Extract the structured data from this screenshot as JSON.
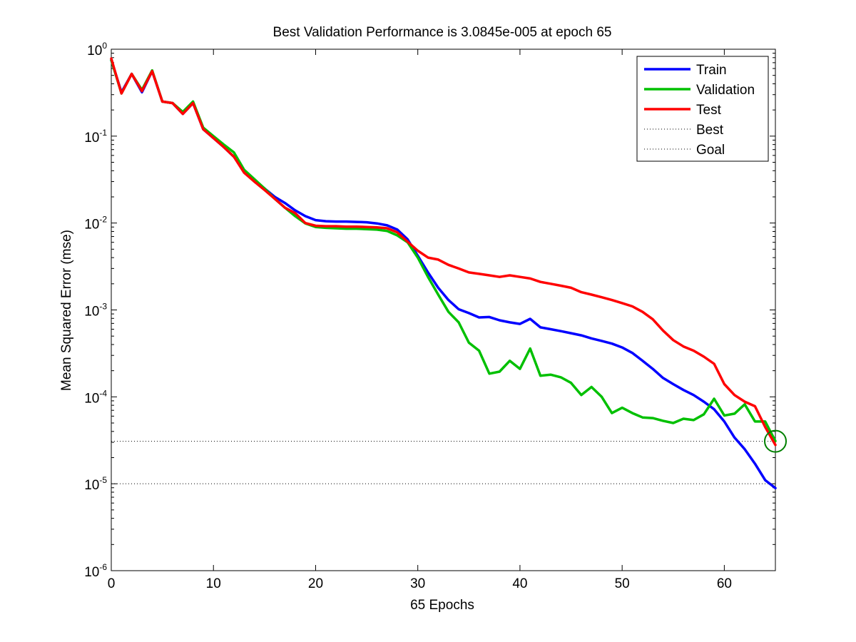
{
  "chart_data": {
    "type": "line",
    "title": "Best Validation Performance is 3.0845e-005 at epoch 65",
    "xlabel": "65 Epochs",
    "ylabel": "Mean Squared Error  (mse)",
    "xlim": [
      0,
      65
    ],
    "ylim": [
      1e-06,
      1
    ],
    "y_scale": "log",
    "x_ticks": [
      0,
      10,
      20,
      30,
      40,
      50,
      60
    ],
    "y_ticks": [
      {
        "base": "10",
        "exp": "-6",
        "value": 1e-06
      },
      {
        "base": "10",
        "exp": "-5",
        "value": 1e-05
      },
      {
        "base": "10",
        "exp": "-4",
        "value": 0.0001
      },
      {
        "base": "10",
        "exp": "-3",
        "value": 0.001
      },
      {
        "base": "10",
        "exp": "-2",
        "value": 0.01
      },
      {
        "base": "10",
        "exp": "-1",
        "value": 0.1
      },
      {
        "base": "10",
        "exp": "0",
        "value": 1
      }
    ],
    "grid": false,
    "legend_position": "top-right",
    "series": [
      {
        "name": "Train",
        "color": "#0000ff",
        "x": [
          0,
          1,
          2,
          3,
          4,
          5,
          6,
          7,
          8,
          9,
          10,
          11,
          12,
          13,
          14,
          15,
          16,
          17,
          18,
          19,
          20,
          21,
          22,
          23,
          24,
          25,
          26,
          27,
          28,
          29,
          30,
          31,
          32,
          33,
          34,
          35,
          36,
          37,
          38,
          39,
          40,
          41,
          42,
          43,
          44,
          45,
          46,
          47,
          48,
          49,
          50,
          51,
          52,
          53,
          54,
          55,
          56,
          57,
          58,
          59,
          60,
          61,
          62,
          63,
          64,
          65
        ],
        "values": [
          0.75,
          0.32,
          0.52,
          0.32,
          0.56,
          0.25,
          0.24,
          0.18,
          0.24,
          0.12,
          0.095,
          0.075,
          0.058,
          0.039,
          0.031,
          0.025,
          0.02,
          0.017,
          0.014,
          0.012,
          0.0108,
          0.0105,
          0.0104,
          0.0104,
          0.0103,
          0.0102,
          0.0099,
          0.0094,
          0.0084,
          0.0065,
          0.0042,
          0.0027,
          0.0018,
          0.0013,
          0.00102,
          0.00092,
          0.00082,
          0.00083,
          0.00076,
          0.00072,
          0.00069,
          0.00079,
          0.00063,
          0.0006,
          0.00057,
          0.00054,
          0.00051,
          0.00047,
          0.00044,
          0.00041,
          0.00037,
          0.00032,
          0.00026,
          0.00021,
          0.000165,
          0.00014,
          0.00012,
          0.000105,
          8.8e-05,
          7.2e-05,
          5.2e-05,
          3.4e-05,
          2.5e-05,
          1.7e-05,
          1.1e-05,
          8.9e-06
        ]
      },
      {
        "name": "Validation",
        "color": "#00c000",
        "x": [
          0,
          1,
          2,
          3,
          4,
          5,
          6,
          7,
          8,
          9,
          10,
          11,
          12,
          13,
          14,
          15,
          16,
          17,
          18,
          19,
          20,
          21,
          22,
          23,
          24,
          25,
          26,
          27,
          28,
          29,
          30,
          31,
          32,
          33,
          34,
          35,
          36,
          37,
          38,
          39,
          40,
          41,
          42,
          43,
          44,
          45,
          46,
          47,
          48,
          49,
          50,
          51,
          52,
          53,
          54,
          55,
          56,
          57,
          58,
          59,
          60,
          61,
          62,
          63,
          64,
          65
        ],
        "values": [
          0.75,
          0.31,
          0.52,
          0.34,
          0.57,
          0.25,
          0.24,
          0.19,
          0.25,
          0.125,
          0.1,
          0.08,
          0.065,
          0.041,
          0.032,
          0.025,
          0.019,
          0.015,
          0.012,
          0.0099,
          0.009,
          0.0088,
          0.0087,
          0.0086,
          0.0086,
          0.0085,
          0.0084,
          0.0081,
          0.0072,
          0.006,
          0.004,
          0.0024,
          0.0015,
          0.00095,
          0.00072,
          0.00042,
          0.00034,
          0.000185,
          0.000195,
          0.00026,
          0.00021,
          0.00036,
          0.000175,
          0.00018,
          0.000168,
          0.000145,
          0.000105,
          0.00013,
          0.0001,
          6.5e-05,
          7.5e-05,
          6.5e-05,
          5.8e-05,
          5.7e-05,
          5.3e-05,
          5e-05,
          5.6e-05,
          5.4e-05,
          6.3e-05,
          9.5e-05,
          6.1e-05,
          6.4e-05,
          8.2e-05,
          5.2e-05,
          5.2e-05,
          3.1e-05
        ]
      },
      {
        "name": "Test",
        "color": "#ff0000",
        "x": [
          0,
          1,
          2,
          3,
          4,
          5,
          6,
          7,
          8,
          9,
          10,
          11,
          12,
          13,
          14,
          15,
          16,
          17,
          18,
          19,
          20,
          21,
          22,
          23,
          24,
          25,
          26,
          27,
          28,
          29,
          30,
          31,
          32,
          33,
          34,
          35,
          36,
          37,
          38,
          39,
          40,
          41,
          42,
          43,
          44,
          45,
          46,
          47,
          48,
          49,
          50,
          51,
          52,
          53,
          54,
          55,
          56,
          57,
          58,
          59,
          60,
          61,
          62,
          63,
          64,
          65
        ],
        "values": [
          0.78,
          0.31,
          0.52,
          0.33,
          0.56,
          0.25,
          0.24,
          0.18,
          0.24,
          0.12,
          0.095,
          0.075,
          0.058,
          0.038,
          0.03,
          0.024,
          0.019,
          0.015,
          0.013,
          0.01,
          0.0093,
          0.0092,
          0.0092,
          0.0091,
          0.0091,
          0.009,
          0.0089,
          0.0087,
          0.0078,
          0.0061,
          0.0048,
          0.004,
          0.0038,
          0.0033,
          0.003,
          0.0027,
          0.0026,
          0.0025,
          0.0024,
          0.0025,
          0.0024,
          0.0023,
          0.0021,
          0.002,
          0.0019,
          0.0018,
          0.0016,
          0.0015,
          0.0014,
          0.0013,
          0.0012,
          0.0011,
          0.00095,
          0.00078,
          0.00058,
          0.00045,
          0.00038,
          0.00034,
          0.00029,
          0.00024,
          0.00014,
          0.000105,
          8.8e-05,
          7.8e-05,
          4.5e-05,
          2.8e-05
        ]
      }
    ],
    "reference_lines": [
      {
        "name": "Best",
        "value": 3.0845e-05,
        "style": "dotted",
        "color": "#000000"
      },
      {
        "name": "Goal",
        "value": 1e-05,
        "style": "dotted",
        "color": "#000000"
      }
    ],
    "best_marker": {
      "x": 65,
      "y": 3.0845e-05,
      "color": "#008000"
    }
  }
}
